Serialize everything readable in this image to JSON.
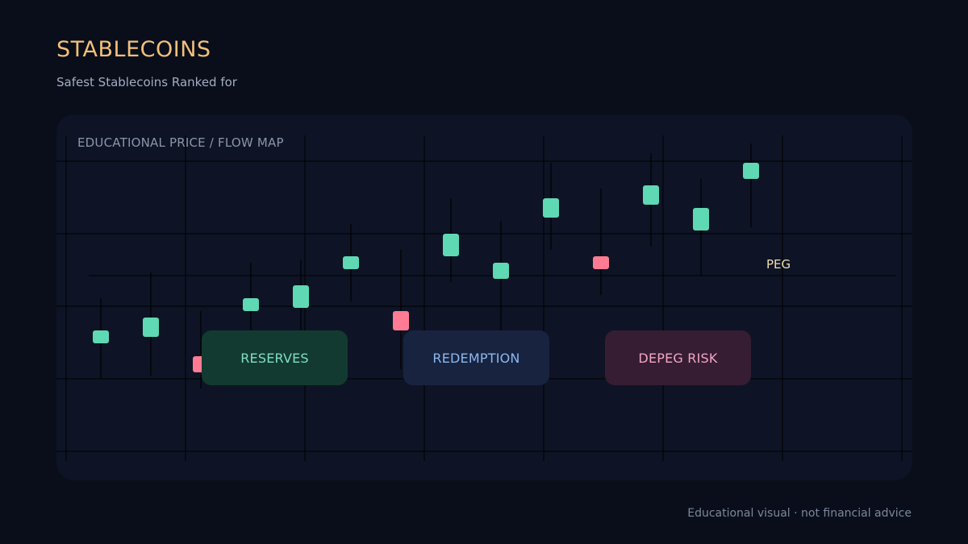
{
  "header": {
    "title": "STABLECOINS",
    "subtitle": "Safest Stablecoins Ranked for"
  },
  "panel": {
    "label": "EDUCATIONAL PRICE / FLOW MAP"
  },
  "boxes": {
    "reserves": "RESERVES",
    "redemption": "REDEMPTION",
    "depeg": "DEPEG RISK"
  },
  "footer": {
    "note": "Educational visual · not financial advice"
  },
  "colors": {
    "background": "#090e1a",
    "panel": "#0e1425",
    "title": "#f2c07a",
    "up": "#5fd8b4",
    "down": "#ff7b94",
    "peg": "#f1dfb0"
  },
  "chart_data": {
    "type": "candlestick",
    "title": "",
    "xlabel": "",
    "ylabel": "",
    "ylim": [
      0,
      100
    ],
    "grid": true,
    "peg": {
      "label": "PEG",
      "value": 58
    },
    "candles": [
      {
        "open": 41,
        "close": 37,
        "high": 51,
        "low": 26,
        "direction": "up"
      },
      {
        "open": 45,
        "close": 39,
        "high": 59,
        "low": 27,
        "direction": "up"
      },
      {
        "open": 33,
        "close": 28,
        "high": 47,
        "low": 23,
        "direction": "down"
      },
      {
        "open": 51,
        "close": 47,
        "high": 62,
        "low": 40,
        "direction": "up"
      },
      {
        "open": 55,
        "close": 48,
        "high": 63,
        "low": 35,
        "direction": "up"
      },
      {
        "open": 64,
        "close": 60,
        "high": 74,
        "low": 50,
        "direction": "up"
      },
      {
        "open": 47,
        "close": 41,
        "high": 66,
        "low": 29,
        "direction": "down"
      },
      {
        "open": 71,
        "close": 64,
        "high": 82,
        "low": 56,
        "direction": "up"
      },
      {
        "open": 62,
        "close": 57,
        "high": 75,
        "low": 35,
        "direction": "up"
      },
      {
        "open": 82,
        "close": 76,
        "high": 93,
        "low": 66,
        "direction": "up"
      },
      {
        "open": 64,
        "close": 60,
        "high": 85,
        "low": 52,
        "direction": "down"
      },
      {
        "open": 86,
        "close": 80,
        "high": 96,
        "low": 67,
        "direction": "up"
      },
      {
        "open": 79,
        "close": 72,
        "high": 88,
        "low": 58,
        "direction": "up"
      },
      {
        "open": 93,
        "close": 88,
        "high": 99,
        "low": 73,
        "direction": "up"
      }
    ]
  }
}
